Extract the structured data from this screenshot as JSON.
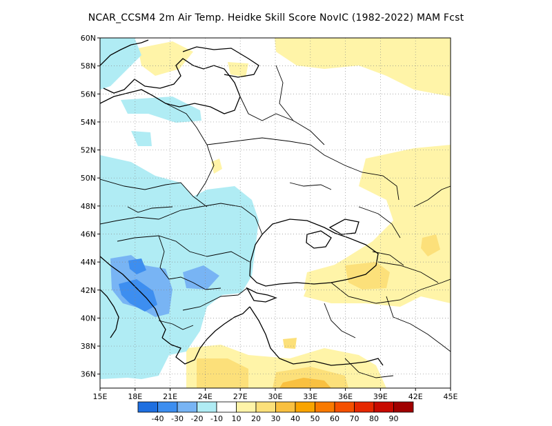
{
  "title": "NCAR_CCSM4  2m Air Temp. Heidke Skill Score NovIC (1982-2022) MAM Fcst",
  "map": {
    "lon_range": [
      15,
      45
    ],
    "lat_range": [
      35,
      60
    ],
    "x_ticks": [
      "15E",
      "18E",
      "21E",
      "24E",
      "27E",
      "30E",
      "33E",
      "36E",
      "39E",
      "42E",
      "45E"
    ],
    "y_ticks": [
      "36N",
      "38N",
      "40N",
      "42N",
      "44N",
      "46N",
      "48N",
      "50N",
      "52N",
      "54N",
      "56N",
      "58N",
      "60N"
    ],
    "grid": "dotted"
  },
  "colorbar": {
    "colors": [
      "#1e6fe0",
      "#3d8ef0",
      "#78b4f4",
      "#b0ecf4",
      "#ffffff",
      "#fff4a8",
      "#fce07a",
      "#f9c040",
      "#f9a400",
      "#f97a00",
      "#f55000",
      "#e62800",
      "#c80a00",
      "#a00000"
    ],
    "labels": [
      "-40",
      "-30",
      "-20",
      "-10",
      "10",
      "20",
      "30",
      "40",
      "50",
      "60",
      "70",
      "80",
      "90"
    ]
  }
}
